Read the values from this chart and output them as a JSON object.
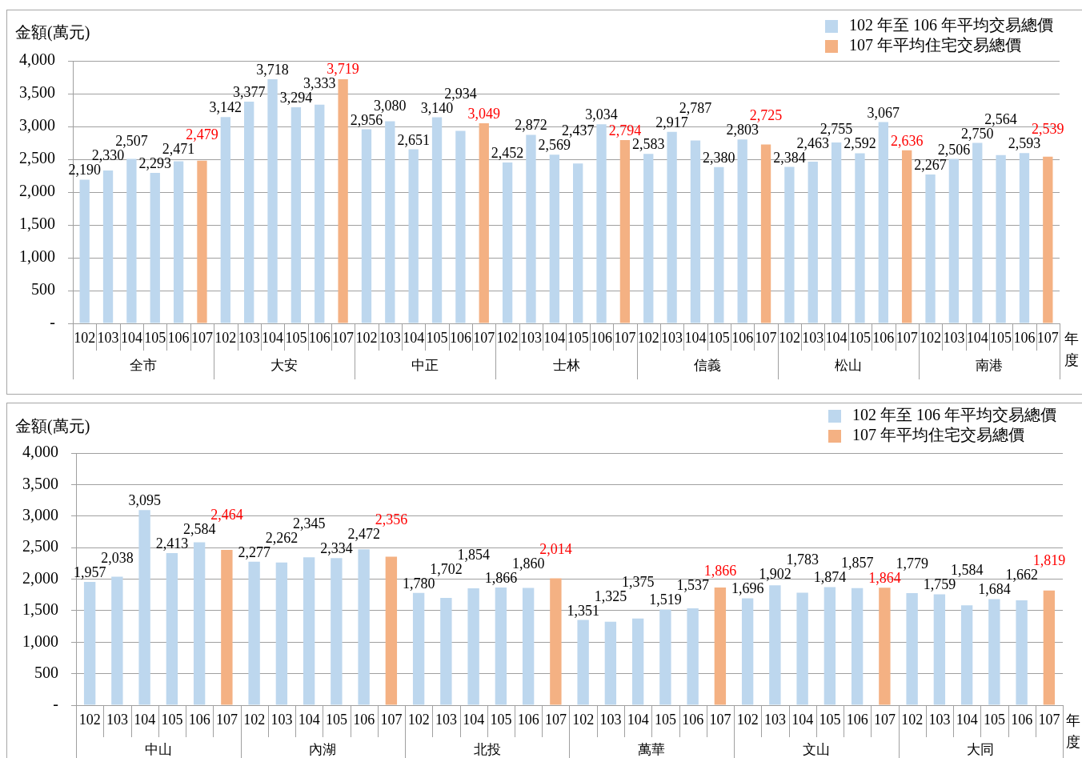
{
  "chart_data": [
    {
      "type": "bar",
      "ylabel": "金額(萬元)",
      "xlabel": "年度",
      "legend": "top right",
      "grid": "y",
      "categories": [
        "102",
        "103",
        "104",
        "105",
        "106",
        "107",
        "102",
        "103",
        "104",
        "105",
        "106",
        "107",
        "102",
        "103",
        "104",
        "105",
        "106",
        "107",
        "102",
        "103",
        "104",
        "105",
        "106",
        "107",
        "102",
        "103",
        "104",
        "105",
        "106",
        "107",
        "102",
        "103",
        "104",
        "105",
        "106",
        "107",
        "102",
        "103",
        "104",
        "105",
        "106",
        "107"
      ],
      "annotations": [
        "全市",
        "大安",
        "中正",
        "士林",
        "信義",
        "松山",
        "南港"
      ],
      "series": [
        {
          "name": "102 年至 106 年平均交易總價",
          "color": "#bdd7ee",
          "values": [
            2190,
            2330,
            2507,
            2293,
            2471,
            null,
            3142,
            3377,
            3718,
            3294,
            3333,
            null,
            2956,
            3080,
            2651,
            3140,
            2934,
            null,
            2452,
            2872,
            2569,
            2437,
            3034,
            null,
            2583,
            2917,
            2787,
            2380,
            2803,
            null,
            2384,
            2463,
            2755,
            2592,
            3067,
            null,
            2267,
            2506,
            2750,
            2564,
            2593,
            null
          ],
          "value_labels": [
            "2,190",
            "2,330",
            "2,507",
            "2,293",
            "2,471",
            null,
            "3,142",
            "3,377",
            "3,718",
            "3,294",
            "3,333",
            null,
            "2,956",
            "3,080",
            "2,651",
            "3,140",
            "2,934",
            null,
            "2,452",
            "2,872",
            "2,569",
            "2,437",
            "3,034",
            null,
            "2,583",
            "2,917",
            "2,787",
            "2,380",
            "2,803",
            null,
            "2,384",
            "2,463",
            "2,755",
            "2,592",
            "3,067",
            null,
            "2,267",
            "2,506",
            "2,750",
            "2,564",
            "2,593",
            null
          ]
        },
        {
          "name": "107 年平均住宅交易總價",
          "color": "#f4b183",
          "values": [
            null,
            null,
            null,
            null,
            null,
            2479,
            null,
            null,
            null,
            null,
            null,
            3719,
            null,
            null,
            null,
            null,
            null,
            3049,
            null,
            null,
            null,
            null,
            null,
            2794,
            null,
            null,
            null,
            null,
            null,
            2725,
            null,
            null,
            null,
            null,
            null,
            2636,
            null,
            null,
            null,
            null,
            null,
            2539
          ],
          "value_labels": [
            null,
            null,
            null,
            null,
            null,
            "2,479",
            null,
            null,
            null,
            null,
            null,
            "3,719",
            null,
            null,
            null,
            null,
            null,
            "3,049",
            null,
            null,
            null,
            null,
            null,
            "2,794",
            null,
            null,
            null,
            null,
            null,
            "2,725",
            null,
            null,
            null,
            null,
            null,
            "2,636",
            null,
            null,
            null,
            null,
            null,
            "2,539"
          ]
        }
      ],
      "ylim": [
        0,
        4000
      ],
      "yticks": [
        {
          "value": 0,
          "label": "-"
        },
        500,
        {
          "value": 1000,
          "label": "1,000"
        },
        {
          "value": 1500,
          "label": "1,500"
        },
        {
          "value": 2000,
          "label": "2,000"
        },
        {
          "value": 2500,
          "label": "2,500"
        },
        {
          "value": 3000,
          "label": "3,000"
        },
        {
          "value": 3500,
          "label": "3,500"
        },
        {
          "value": 4000,
          "label": "4,000"
        }
      ]
    },
    {
      "type": "bar",
      "ylabel": "金額(萬元)",
      "xlabel": "年度",
      "legend": "top right",
      "grid": "y",
      "categories": [
        "102",
        "103",
        "104",
        "105",
        "106",
        "107",
        "102",
        "103",
        "104",
        "105",
        "106",
        "107",
        "102",
        "103",
        "104",
        "105",
        "106",
        "107",
        "102",
        "103",
        "104",
        "105",
        "106",
        "107",
        "102",
        "103",
        "104",
        "105",
        "106",
        "107",
        "102",
        "103",
        "104",
        "105",
        "106",
        "107"
      ],
      "annotations": [
        "中山",
        "內湖",
        "北投",
        "萬華",
        "文山",
        "大同"
      ],
      "series": [
        {
          "name": "102 年至 106 年平均交易總價",
          "color": "#bdd7ee",
          "values": [
            1957,
            2038,
            3095,
            2413,
            2584,
            null,
            2277,
            2262,
            2345,
            2334,
            2472,
            null,
            1780,
            1702,
            1854,
            1866,
            1860,
            null,
            1351,
            1325,
            1375,
            1519,
            1537,
            null,
            1696,
            1902,
            1783,
            1874,
            1857,
            null,
            1779,
            1759,
            1584,
            1684,
            1662,
            null
          ],
          "value_labels": [
            "1,957",
            "2,038",
            "3,095",
            "2,413",
            "2,584",
            null,
            "2,277",
            "2,262",
            "2,345",
            "2,334",
            "2,472",
            null,
            "1,780",
            "1,702",
            "1,854",
            "1,866",
            "1,860",
            null,
            "1,351",
            "1,325",
            "1,375",
            "1,519",
            "1,537",
            null,
            "1,696",
            "1,902",
            "1,783",
            "1,874",
            "1,857",
            null,
            "1,779",
            "1,759",
            "1,584",
            "1,684",
            "1,662",
            null
          ]
        },
        {
          "name": "107 年平均住宅交易總價",
          "color": "#f4b183",
          "values": [
            null,
            null,
            null,
            null,
            null,
            2464,
            null,
            null,
            null,
            null,
            null,
            2356,
            null,
            null,
            null,
            null,
            null,
            2014,
            null,
            null,
            null,
            null,
            null,
            1866,
            null,
            null,
            null,
            null,
            null,
            1864,
            null,
            null,
            null,
            null,
            null,
            1819
          ],
          "value_labels": [
            null,
            null,
            null,
            null,
            null,
            "2,464",
            null,
            null,
            null,
            null,
            null,
            "2,356",
            null,
            null,
            null,
            null,
            null,
            "2,014",
            null,
            null,
            null,
            null,
            null,
            "1,866",
            null,
            null,
            null,
            null,
            null,
            "1,864",
            null,
            null,
            null,
            null,
            null,
            "1,819"
          ]
        }
      ],
      "ylim": [
        0,
        4000
      ],
      "yticks": [
        {
          "value": 0,
          "label": "-"
        },
        500,
        {
          "value": 1000,
          "label": "1,000"
        },
        {
          "value": 1500,
          "label": "1,500"
        },
        {
          "value": 2000,
          "label": "2,000"
        },
        {
          "value": 2500,
          "label": "2,500"
        },
        {
          "value": 3000,
          "label": "3,000"
        },
        {
          "value": 3500,
          "label": "3,500"
        },
        {
          "value": 4000,
          "label": "4,000"
        }
      ]
    }
  ]
}
